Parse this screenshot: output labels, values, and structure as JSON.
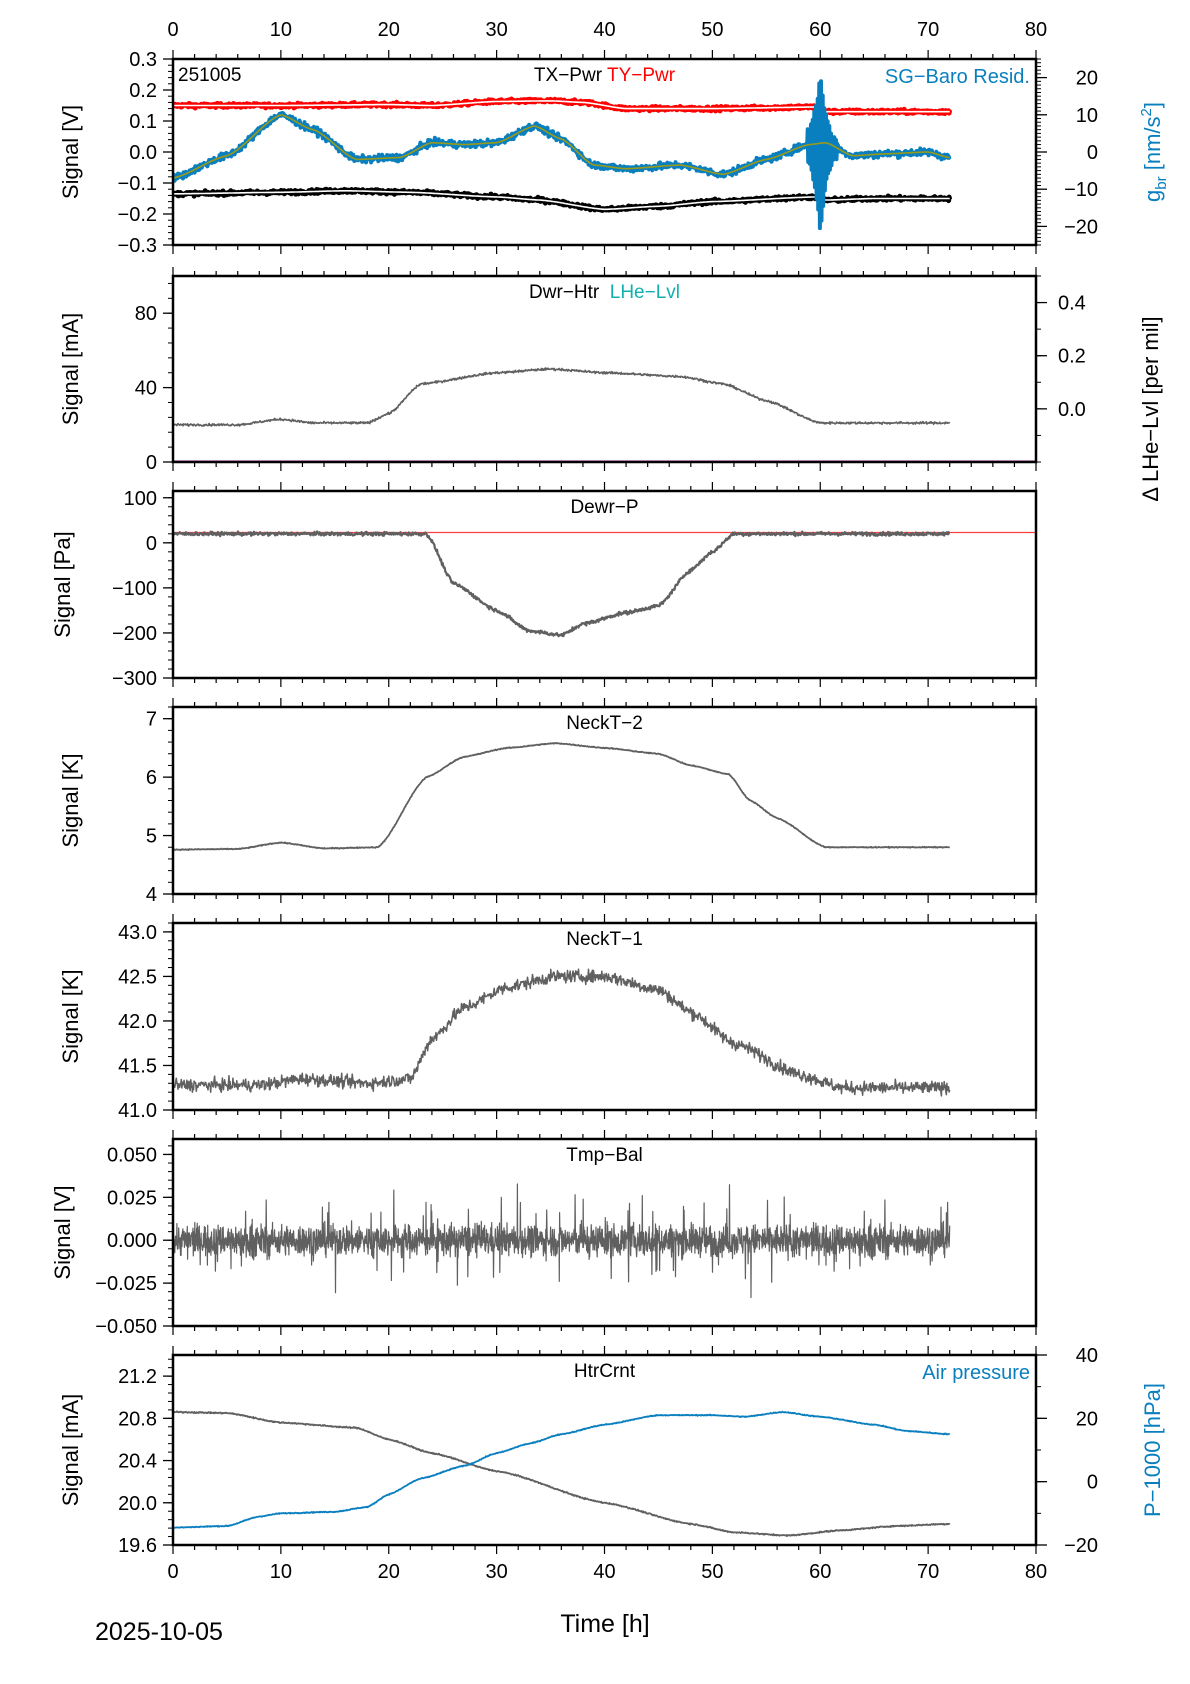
{
  "chart_data": {
    "type": "line",
    "date_label": "2025-10-05",
    "xlabel": "Time [h]",
    "xlim": [
      0,
      80
    ],
    "x_ticks": [
      0,
      10,
      20,
      30,
      40,
      50,
      60,
      70,
      80
    ],
    "panels": [
      {
        "id": "tx-ty-pwr",
        "titles": [
          {
            "text": "TX−Pwr",
            "color": "#000000"
          },
          {
            "text": "TY−Pwr",
            "color": "#ff0000"
          }
        ],
        "corner_label": "251005",
        "right_title": {
          "text": "SG−Baro Resid.",
          "color": "#0a7fbf"
        },
        "ylabel": "Signal [V]",
        "ylim": [
          -0.3,
          0.3
        ],
        "yticks": [
          0.3,
          0.2,
          0.1,
          0.0,
          -0.1,
          -0.2,
          -0.3
        ],
        "ytick_labels": [
          "0.3",
          "0.2",
          "0.1",
          "0.0",
          "−0.1",
          "−0.2",
          "−0.3"
        ],
        "y2label": "g_br [nm/s²]",
        "y2label_main": "g",
        "y2label_sub": "br",
        "y2label_rest": " [nm/s",
        "y2label_sup": "2",
        "y2label_end": "]",
        "y2label_color": "#0a7fbf",
        "y2lim": [
          -25,
          25
        ],
        "y2ticks": [
          20,
          10,
          0,
          -10,
          -20
        ],
        "y2tick_labels": [
          "20",
          "10",
          "0",
          "−10",
          "−20"
        ],
        "series": [
          {
            "name": "TY-Pwr",
            "color": "#ff0000",
            "axis": "y",
            "width": 5,
            "noise": 0.006,
            "smooth_color": "#ffffff",
            "x": [
              0,
              10,
              20,
              24,
              30,
              35,
              38,
              42,
              50,
              59.5,
              60.5,
              65,
              72
            ],
            "y": [
              0.15,
              0.15,
              0.153,
              0.15,
              0.163,
              0.165,
              0.16,
              0.14,
              0.14,
              0.145,
              0.13,
              0.13,
              0.13
            ]
          },
          {
            "name": "TX-Pwr",
            "color": "#000000",
            "axis": "y",
            "width": 5,
            "noise": 0.006,
            "smooth_color": "#ffffff",
            "x": [
              0,
              10,
              16,
              22,
              30,
              34,
              40,
              45,
              50,
              59.5,
              60.5,
              65,
              72
            ],
            "y": [
              -0.135,
              -0.13,
              -0.125,
              -0.13,
              -0.145,
              -0.155,
              -0.185,
              -0.175,
              -0.16,
              -0.145,
              -0.155,
              -0.15,
              -0.15
            ]
          },
          {
            "name": "SG-Baro Resid.",
            "color": "#0a7fbf",
            "axis": "y2",
            "width": 4,
            "noise": 0.9,
            "smooth_color": "#9a9a1a",
            "x": [
              0,
              5,
              10,
              13,
              17,
              21,
              24,
              27,
              30,
              33.5,
              36,
              39,
              42,
              47,
              51,
              55,
              59,
              60.5,
              63,
              66,
              70,
              72
            ],
            "y": [
              -7,
              -1,
              10,
              6,
              -2,
              -1.5,
              2.5,
              2,
              2.5,
              7,
              3.5,
              -3.5,
              -4.5,
              -3.5,
              -6,
              -2,
              2,
              2.5,
              -1,
              -0.5,
              0,
              -1.5
            ],
            "spike": {
              "x": 60,
              "amp": 25
            }
          }
        ]
      },
      {
        "id": "dwr-htr",
        "titles": [
          {
            "text": "Dwr−Htr",
            "color": "#000000"
          },
          {
            "text": "LHe−Lvl",
            "color": "#10b0b0"
          }
        ],
        "ylabel": "Signal [mA]",
        "ylim": [
          0,
          100
        ],
        "yticks": [
          0,
          40,
          80
        ],
        "ytick_labels": [
          "0",
          "40",
          "80"
        ],
        "y2label": "Δ LHe−Lvl [per mil]",
        "y2lim": [
          -0.2,
          0.5
        ],
        "y2ticks": [
          0.4,
          0.2,
          0.0
        ],
        "y2tick_labels": [
          "0.4",
          "0.2",
          "0.0"
        ],
        "series": [
          {
            "name": "Dwr-Htr",
            "color": "#606060",
            "axis": "y",
            "width": 1.6,
            "noise": 0.6,
            "x": [
              0,
              6,
              10,
              13,
              18,
              20,
              23,
              30,
              35,
              40,
              47,
              51,
              55,
              60,
              65,
              72
            ],
            "y": [
              20,
              20,
              23,
              21,
              21,
              26,
              42,
              48,
              50,
              48,
              46,
              42,
              33,
              21,
              21,
              21
            ]
          },
          {
            "name": "LHe-Lvl",
            "color": "#b000b0",
            "axis": "y",
            "width": 3,
            "noise": 0,
            "x": [
              0,
              80
            ],
            "y": [
              0,
              0
            ]
          }
        ]
      },
      {
        "id": "dewr-p",
        "titles": [
          {
            "text": "Dewr−P",
            "color": "#000000"
          }
        ],
        "ylabel": "Signal [Pa]",
        "ylim": [
          -300,
          115
        ],
        "yticks": [
          100,
          0,
          -100,
          -200,
          -300
        ],
        "ytick_labels": [
          "100",
          "0",
          "−100",
          "−200",
          "−300"
        ],
        "series": [
          {
            "name": "Dewr-P reference",
            "color": "#ff4040",
            "axis": "y",
            "width": 1.2,
            "noise": 0,
            "x": [
              0,
              80
            ],
            "y": [
              23,
              23
            ]
          },
          {
            "name": "Dewr-P",
            "color": "#606060",
            "axis": "y",
            "width": 2.2,
            "noise": 4,
            "x": [
              0,
              23.5,
              26,
              30,
              33,
              36,
              38,
              42,
              45,
              48,
              50,
              52,
              60,
              72
            ],
            "y": [
              20,
              20,
              -90,
              -150,
              -195,
              -205,
              -180,
              -155,
              -140,
              -60,
              -20,
              20,
              20,
              20
            ]
          }
        ]
      },
      {
        "id": "neckt-2",
        "titles": [
          {
            "text": "NeckT−2",
            "color": "#000000"
          }
        ],
        "ylabel": "Signal [K]",
        "ylim": [
          4,
          7.2
        ],
        "yticks": [
          7,
          6,
          5,
          4
        ],
        "ytick_labels": [
          "7",
          "6",
          "5",
          "4"
        ],
        "series": [
          {
            "name": "NeckT-2",
            "color": "#606060",
            "axis": "y",
            "width": 1.8,
            "noise": 0.008,
            "x": [
              0,
              6,
              10,
              14,
              19,
              23.5,
              27,
              31,
              35.5,
              40,
              45,
              48,
              51.5,
              53.5,
              56,
              60.5,
              72
            ],
            "y": [
              4.76,
              4.77,
              4.88,
              4.78,
              4.8,
              6.0,
              6.35,
              6.5,
              6.58,
              6.5,
              6.4,
              6.2,
              6.05,
              5.6,
              5.3,
              4.8,
              4.8
            ]
          }
        ]
      },
      {
        "id": "neckt-1",
        "titles": [
          {
            "text": "NeckT−1",
            "color": "#000000"
          }
        ],
        "ylabel": "Signal [K]",
        "ylim": [
          41.0,
          43.1
        ],
        "yticks": [
          43.0,
          42.5,
          42.0,
          41.5,
          41.0
        ],
        "ytick_labels": [
          "43.0",
          "42.5",
          "42.0",
          "41.5",
          "41.0"
        ],
        "series": [
          {
            "name": "NeckT-1",
            "color": "#606060",
            "axis": "y",
            "width": 1.5,
            "noise": 0.07,
            "x": [
              0,
              8,
              12,
              18,
              22,
              24,
              27,
              31,
              35.5,
              40,
              45,
              48,
              52,
              58,
              62,
              66,
              72
            ],
            "y": [
              41.28,
              41.28,
              41.35,
              41.3,
              41.35,
              41.8,
              42.15,
              42.38,
              42.5,
              42.5,
              42.35,
              42.1,
              41.75,
              41.4,
              41.25,
              41.25,
              41.25
            ]
          }
        ]
      },
      {
        "id": "tmp-bal",
        "titles": [
          {
            "text": "Tmp−Bal",
            "color": "#000000"
          }
        ],
        "ylabel": "Signal [V]",
        "ylim": [
          -0.05,
          0.059
        ],
        "yticks": [
          0.05,
          0.025,
          0.0,
          -0.025,
          -0.05
        ],
        "ytick_labels": [
          "0.050",
          "0.025",
          "0.000",
          "−0.025",
          "−0.050"
        ],
        "series": [
          {
            "name": "Tmp-Bal",
            "color": "#606060",
            "axis": "y",
            "width": 1.2,
            "noise": 0.009,
            "dense": true,
            "x": [
              0,
              72
            ],
            "y": [
              0,
              0
            ]
          }
        ]
      },
      {
        "id": "htrcrnt",
        "titles": [
          {
            "text": "HtrCrnt",
            "color": "#000000"
          }
        ],
        "right_title": {
          "text": "Air pressure",
          "color": "#0a7fbf"
        },
        "ylabel": "Signal [mA]",
        "ylim": [
          19.6,
          21.4
        ],
        "yticks": [
          21.2,
          20.8,
          20.4,
          20.0,
          19.6
        ],
        "ytick_labels": [
          "21.2",
          "20.8",
          "20.4",
          "20.0",
          "19.6"
        ],
        "y2label": "P−1000 [hPa]",
        "y2label_color": "#0a7fbf",
        "y2lim": [
          -20,
          40
        ],
        "y2ticks": [
          40,
          20,
          0,
          -20
        ],
        "y2tick_labels": [
          "40",
          "20",
          "0",
          "−20"
        ],
        "series": [
          {
            "name": "HtrCrnt",
            "color": "#606060",
            "axis": "y",
            "width": 1.8,
            "noise": 0.006,
            "x": [
              0,
              5,
              10,
              17,
              20,
              24,
              30,
              40,
              48,
              52,
              57,
              62,
              67,
              72
            ],
            "y": [
              20.86,
              20.85,
              20.76,
              20.71,
              20.6,
              20.47,
              20.3,
              20.0,
              19.8,
              19.72,
              19.69,
              19.74,
              19.78,
              19.8
            ],
            "x_end": 72
          },
          {
            "name": "Air pressure",
            "color": "#0a7fbf",
            "axis": "y2",
            "width": 1.8,
            "noise": 0.15,
            "x": [
              0,
              5,
              8,
              10,
              15,
              18,
              20,
              23,
              27,
              30,
              33,
              36,
              40,
              45,
              50,
              53,
              56.5,
              60,
              65,
              68,
              72
            ],
            "y": [
              -14.5,
              -14,
              -11,
              -10,
              -9.5,
              -8,
              -4,
              1,
              5,
              9,
              12,
              15,
              18,
              21,
              21,
              20.5,
              22,
              20.5,
              18,
              16,
              15
            ]
          }
        ]
      }
    ]
  }
}
